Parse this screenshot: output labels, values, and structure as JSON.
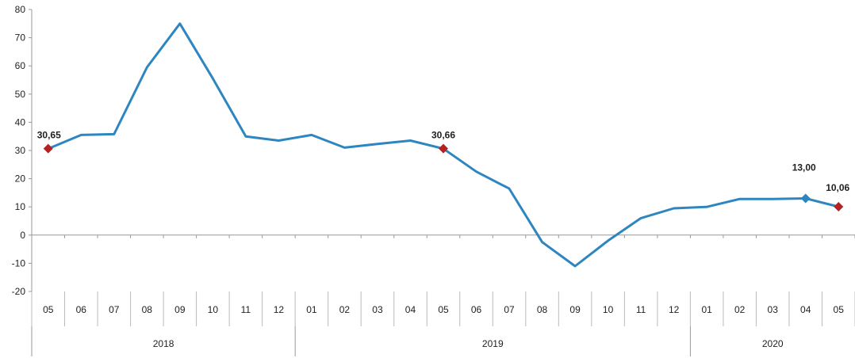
{
  "chart_data": {
    "type": "line",
    "title": "",
    "xlabel": "",
    "ylabel": "",
    "ylim": [
      -20,
      80
    ],
    "yticks": [
      "80",
      "70",
      "60",
      "50",
      "40",
      "30",
      "20",
      "10",
      "0",
      "-10",
      "-20"
    ],
    "grid": false,
    "months": [
      "05",
      "06",
      "07",
      "08",
      "09",
      "10",
      "11",
      "12",
      "01",
      "02",
      "03",
      "04",
      "05",
      "06",
      "07",
      "08",
      "09",
      "10",
      "11",
      "12",
      "01",
      "02",
      "03",
      "04",
      "05"
    ],
    "years": [
      {
        "label": "2018",
        "start": 0,
        "count": 8
      },
      {
        "label": "2019",
        "start": 8,
        "count": 12
      },
      {
        "label": "2020",
        "start": 20,
        "count": 5
      }
    ],
    "series": [
      {
        "color": "#2E86C1",
        "values": [
          30.65,
          35.5,
          35.8,
          59.5,
          75.0,
          55.5,
          35.0,
          33.5,
          35.5,
          31.0,
          32.3,
          33.5,
          30.66,
          22.5,
          16.5,
          -2.5,
          -11.0,
          -2.0,
          6.0,
          9.5,
          10.0,
          12.8,
          12.8,
          13.0,
          10.06
        ]
      }
    ],
    "annotations": [
      {
        "index": 0,
        "text": "30,65",
        "marker": "diamond",
        "color": "#B22222"
      },
      {
        "index": 12,
        "text": "30,66",
        "marker": "diamond",
        "color": "#B22222"
      },
      {
        "index": 23,
        "text": "13,00",
        "marker": "diamond",
        "color": "#2E86C1"
      },
      {
        "index": 24,
        "text": "10,06",
        "marker": "diamond",
        "color": "#B22222"
      }
    ]
  }
}
